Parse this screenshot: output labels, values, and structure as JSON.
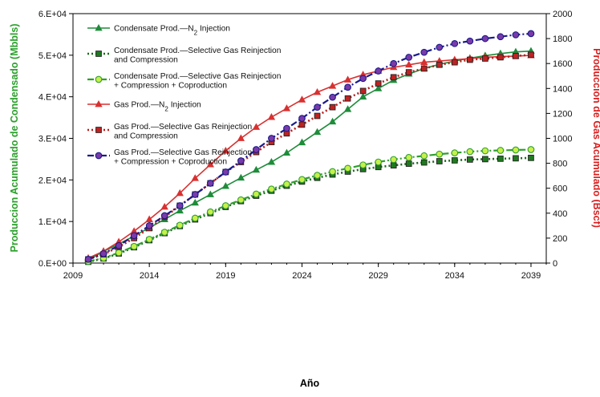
{
  "chart_data": {
    "type": "line",
    "xlabel": "Año",
    "ylabel_left": "Produccion Acumulado de Condensado (Mbbls)",
    "ylabel_right": "Producción de Gas Acumulado (Bscf)",
    "xlim": [
      2009,
      2040
    ],
    "x_ticks": [
      "2009",
      "2014",
      "2019",
      "2024",
      "2029",
      "2034",
      "2039"
    ],
    "ylim_left": [
      0,
      60000
    ],
    "y_ticks_left": [
      "0.E+00",
      "1.E+04",
      "2.E+04",
      "3.E+04",
      "4.E+04",
      "5.E+04",
      "6.E+04"
    ],
    "ylim_right": [
      0,
      2000
    ],
    "y_ticks_right": [
      "0",
      "200",
      "400",
      "600",
      "800",
      "1000",
      "1200",
      "1400",
      "1600",
      "1800",
      "2000"
    ],
    "grid": false,
    "legend_position": "top-left",
    "x": [
      2010,
      2011,
      2012,
      2013,
      2014,
      2015,
      2016,
      2017,
      2018,
      2019,
      2020,
      2021,
      2022,
      2023,
      2024,
      2025,
      2026,
      2027,
      2028,
      2029,
      2030,
      2031,
      2032,
      2033,
      2034,
      2035,
      2036,
      2037,
      2038,
      2039
    ],
    "series": [
      {
        "name_parts": [
          "Condensate Prod.—N",
          "2",
          " Injection"
        ],
        "axis": "left",
        "color": "#1e8c3a",
        "marker": "triangle",
        "marker_fill": "#1e8c3a",
        "dash": "solid",
        "values": [
          800,
          2800,
          4600,
          6500,
          8500,
          10500,
          12600,
          14500,
          16500,
          18500,
          20500,
          22400,
          24300,
          26500,
          29000,
          31500,
          34000,
          37000,
          40000,
          42000,
          44000,
          45500,
          46800,
          47800,
          48600,
          49300,
          49900,
          50400,
          50800,
          51000
        ]
      },
      {
        "name_lines": [
          "Condensate Prod.—Selective Gas Reinjection",
          "and Compression"
        ],
        "axis": "left",
        "color": "#1a6a1a",
        "marker": "square",
        "marker_fill": "#1e7a1e",
        "dash": "dot",
        "values": [
          300,
          1100,
          2300,
          3800,
          5500,
          7200,
          8900,
          10500,
          12000,
          13500,
          14900,
          16200,
          17400,
          18600,
          19600,
          20500,
          21300,
          22000,
          22600,
          23100,
          23500,
          23900,
          24200,
          24500,
          24700,
          24900,
          25000,
          25100,
          25200,
          25300
        ]
      },
      {
        "name_lines": [
          "Condensate Prod.—Selective Gas Reinjection",
          "+ Compression + Coproduction"
        ],
        "axis": "left",
        "color": "#2e9e2e",
        "marker": "circle",
        "marker_fill": "#c8f04a",
        "dash": "dashdot",
        "values": [
          400,
          1200,
          2500,
          4000,
          5700,
          7400,
          9100,
          10800,
          12300,
          13800,
          15200,
          16600,
          17800,
          19000,
          20100,
          21100,
          22000,
          22800,
          23600,
          24300,
          24900,
          25400,
          25800,
          26200,
          26500,
          26800,
          27000,
          27100,
          27200,
          27300
        ]
      },
      {
        "name_parts": [
          "Gas Prod.—N",
          "2",
          " Injection"
        ],
        "axis": "right",
        "color": "#d93030",
        "marker": "triangle",
        "marker_fill": "#d93030",
        "dash": "solid",
        "values": [
          40,
          95,
          170,
          255,
          350,
          450,
          560,
          680,
          790,
          900,
          1000,
          1090,
          1170,
          1240,
          1310,
          1370,
          1420,
          1470,
          1510,
          1540,
          1570,
          1590,
          1610,
          1620,
          1630,
          1640,
          1650,
          1655,
          1660,
          1665
        ]
      },
      {
        "name_lines": [
          "Gas Prod.—Selective Gas Reinjection",
          "and Compression"
        ],
        "axis": "right",
        "color": "#b81e1e",
        "marker": "square",
        "marker_fill": "#c02222",
        "dash": "dot",
        "values": [
          30,
          70,
          130,
          200,
          280,
          370,
          460,
          550,
          640,
          730,
          810,
          890,
          970,
          1040,
          1110,
          1180,
          1250,
          1320,
          1380,
          1440,
          1490,
          1530,
          1560,
          1590,
          1610,
          1630,
          1640,
          1650,
          1660,
          1670
        ]
      },
      {
        "name_lines": [
          "Gas Prod.—Selective Gas Reinjection",
          "+ Compression + Coproduction"
        ],
        "axis": "right",
        "color": "#1a1a8c",
        "marker": "circle",
        "marker_fill": "#7a3aa8",
        "dash": "dashdot",
        "values": [
          30,
          75,
          140,
          220,
          300,
          380,
          460,
          550,
          640,
          730,
          820,
          910,
          1000,
          1080,
          1160,
          1250,
          1330,
          1410,
          1480,
          1540,
          1600,
          1650,
          1690,
          1730,
          1760,
          1780,
          1800,
          1815,
          1830,
          1840
        ]
      }
    ]
  }
}
